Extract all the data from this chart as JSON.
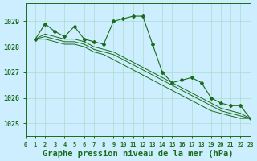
{
  "background_color": "#cceeff",
  "grid_color": "#aaddcc",
  "line_color": "#1a6b1a",
  "title": "Graphe pression niveau de la mer (hPa)",
  "xlabel_fontsize": 7,
  "ylabel_fontsize": 7,
  "title_fontsize": 7.5,
  "xlim": [
    0,
    23
  ],
  "ylim": [
    1024.5,
    1029.7
  ],
  "yticks": [
    1025,
    1026,
    1027,
    1028,
    1029
  ],
  "xticks": [
    0,
    1,
    2,
    3,
    4,
    5,
    6,
    7,
    8,
    9,
    10,
    11,
    12,
    13,
    14,
    15,
    16,
    17,
    18,
    19,
    20,
    21,
    22,
    23
  ],
  "series1": [
    1028.3,
    1028.9,
    1028.6,
    1028.4,
    1028.8,
    1028.3,
    1028.2,
    1028.1,
    1029.0,
    1029.1,
    1029.2,
    1029.2,
    1028.1,
    1027.0,
    1026.6,
    1026.7,
    1026.8,
    1026.6,
    1026.0,
    1025.8,
    1025.7,
    1025.7,
    1025.2
  ],
  "series2": [
    1028.3,
    1028.5,
    1028.4,
    1028.3,
    1028.3,
    1028.2,
    1028.0,
    1027.9,
    1027.8,
    1027.6,
    1027.4,
    1027.2,
    1027.0,
    1026.8,
    1026.6,
    1026.4,
    1026.2,
    1026.0,
    1025.8,
    1025.6,
    1025.5,
    1025.4,
    1025.2
  ],
  "series3": [
    1028.3,
    1028.4,
    1028.3,
    1028.2,
    1028.2,
    1028.1,
    1027.9,
    1027.8,
    1027.7,
    1027.5,
    1027.3,
    1027.1,
    1026.9,
    1026.7,
    1026.5,
    1026.3,
    1026.1,
    1025.9,
    1025.7,
    1025.5,
    1025.4,
    1025.3,
    1025.2
  ],
  "series4": [
    1028.3,
    1028.3,
    1028.2,
    1028.1,
    1028.1,
    1028.0,
    1027.8,
    1027.7,
    1027.5,
    1027.3,
    1027.1,
    1026.9,
    1026.7,
    1026.5,
    1026.3,
    1026.1,
    1025.9,
    1025.7,
    1025.5,
    1025.4,
    1025.3,
    1025.2,
    1025.2
  ]
}
